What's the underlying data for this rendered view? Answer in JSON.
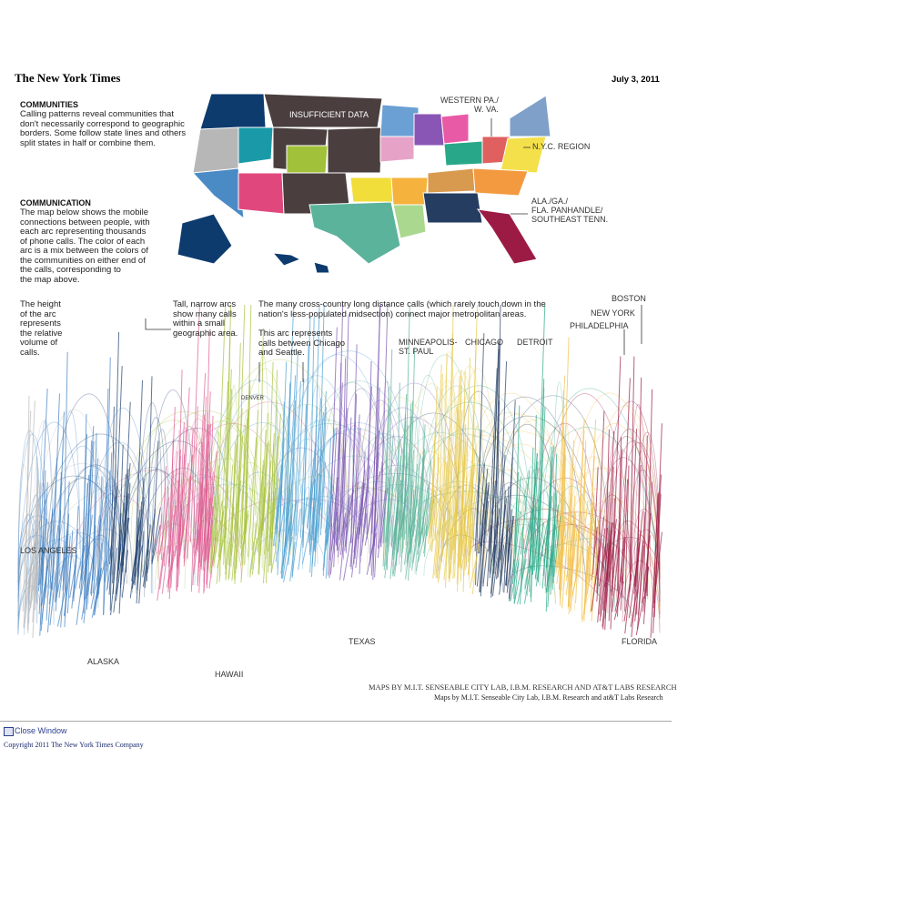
{
  "header": {
    "logo": "The New York Times",
    "date": "July 3, 2011"
  },
  "communities": {
    "title": "COMMUNITIES",
    "lines": [
      "Calling patterns reveal communities that",
      "don't necessarily correspond to geographic",
      "borders. Some follow state lines and others",
      "split states in half or combine them."
    ]
  },
  "communication": {
    "title": "COMMUNICATION",
    "lines": [
      "The map below shows the mobile",
      "connections between people, with",
      "each arc representing thousands",
      "of phone calls. The color of each",
      "arc is a mix between the colors of",
      "the communities on either end of",
      "the calls, corresponding to",
      "the map above."
    ]
  },
  "map_labels": [
    {
      "lines": [
        "INSUFFICIENT DATA"
      ]
    },
    {
      "lines": [
        "WESTERN PA./",
        "W. VA."
      ]
    },
    {
      "lines": [
        "N.Y.C. REGION"
      ]
    },
    {
      "lines": [
        "ALA./GA./",
        "FLA. PANHANDLE/",
        "SOUTHEAST TENN."
      ]
    }
  ],
  "notes": [
    {
      "lines": [
        "The height",
        "of the arc",
        "represents",
        "the relative",
        "volume of",
        "calls."
      ]
    },
    {
      "lines": [
        "Tall, narrow arcs",
        "show many calls",
        "within a small",
        "geographic area."
      ]
    },
    {
      "lines": [
        "The many cross-country long distance calls (which rarely touch down in the",
        "nation's less-populated midsection) connect major metropolitan areas."
      ]
    },
    {
      "lines": [
        "This arc represents",
        "calls between Chicago",
        "and Seattle."
      ]
    }
  ],
  "cities": [
    {
      "lines": [
        "MINNEAPOLIS-",
        "ST. PAUL"
      ]
    },
    {
      "lines": [
        "CHICAGO"
      ]
    },
    {
      "lines": [
        "DETROIT"
      ]
    },
    {
      "lines": [
        "BOSTON"
      ]
    },
    {
      "lines": [
        "NEW YORK"
      ]
    },
    {
      "lines": [
        "PHILADELPHIA"
      ]
    },
    {
      "lines": [
        "DENVER"
      ]
    },
    {
      "lines": [
        "LOS ANGELES"
      ]
    },
    {
      "lines": [
        "ALASKA"
      ]
    },
    {
      "lines": [
        "HAWAII"
      ]
    },
    {
      "lines": [
        "TEXAS"
      ]
    },
    {
      "lines": [
        "FLORIDA"
      ]
    }
  ],
  "credit": {
    "caps": "MAPS BY M.I.T. SENSEABLE CITY LAB, I.B.M. RESEARCH AND AT&T LABS RESEARCH",
    "small": "Maps by M.I.T. Senseable City Lab, I.B.M. Research and at&T Labs Research"
  },
  "footer": {
    "close": "Close Window",
    "copyright": "Copyright 2011 The New York Times Company"
  }
}
